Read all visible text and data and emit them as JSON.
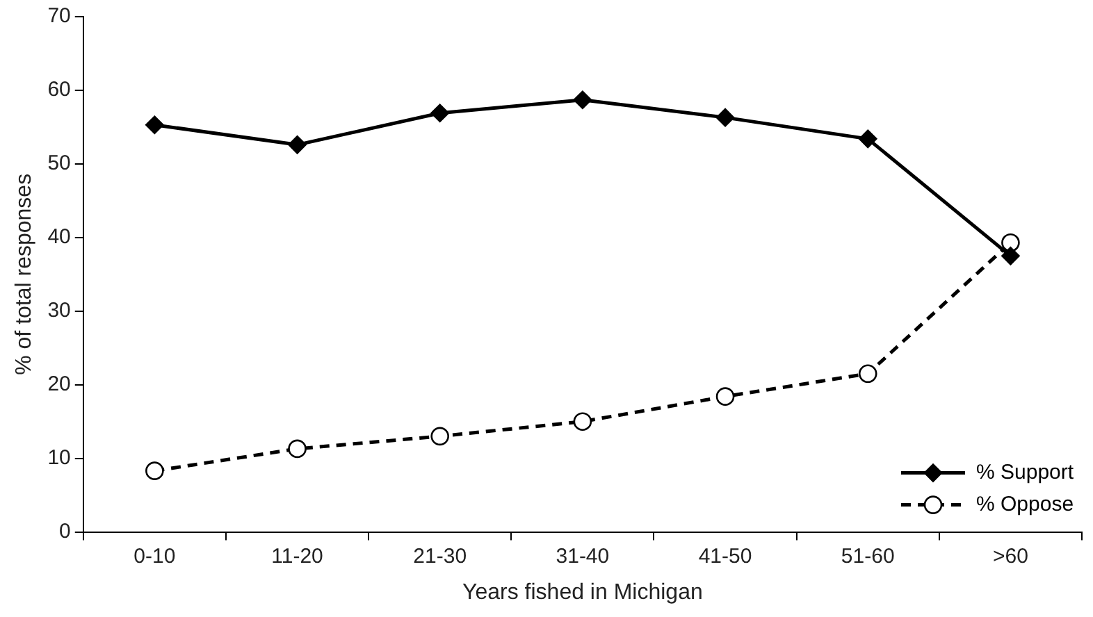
{
  "chart_data": {
    "type": "line",
    "xlabel": "Years fished in Michigan",
    "ylabel": "% of total responses",
    "categories": [
      "0-10",
      "11-20",
      "21-30",
      "31-40",
      "41-50",
      "51-60",
      ">60"
    ],
    "series": [
      {
        "name": "% Support",
        "color": "#000000",
        "marker": "diamond",
        "line_style": "solid",
        "values": [
          55.3,
          52.6,
          56.9,
          58.7,
          56.3,
          53.4,
          37.5
        ]
      },
      {
        "name": "% Oppose",
        "color": "#000000",
        "marker": "circle",
        "line_style": "dashed",
        "values": [
          8.3,
          11.3,
          13.0,
          15.0,
          18.4,
          21.5,
          39.3
        ]
      }
    ],
    "ylim": [
      0,
      70
    ],
    "yticks": [
      0,
      10,
      20,
      30,
      40,
      50,
      60,
      70
    ],
    "grid": false,
    "legend": "bottom right"
  }
}
